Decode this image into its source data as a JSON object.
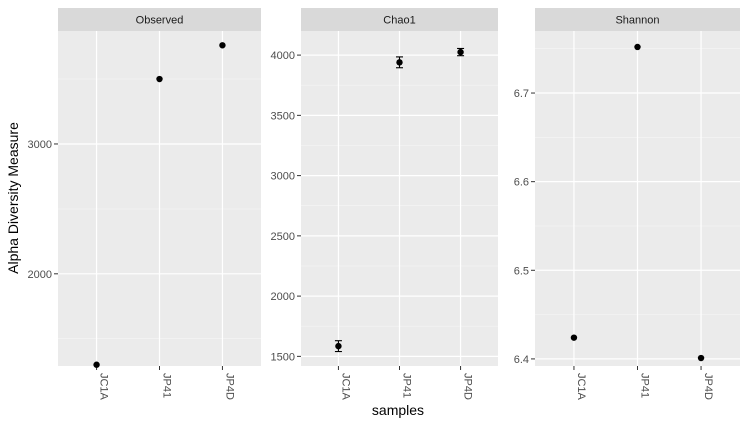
{
  "chart_data": {
    "type": "scatter",
    "ylabel": "Alpha Diversity Measure",
    "xlabel": "samples",
    "categories": [
      "JC1A",
      "JP41",
      "JP4D"
    ],
    "panels": [
      {
        "title": "Observed",
        "ylim": [
          1290,
          3870
        ],
        "yticks": [
          2000,
          3000
        ],
        "values": [
          1300,
          3500,
          3760
        ],
        "errors": null
      },
      {
        "title": "Chao1",
        "ylim": [
          1420,
          4200
        ],
        "yticks": [
          1500,
          2000,
          2500,
          3000,
          3500,
          4000
        ],
        "values": [
          1585,
          3940,
          4025
        ],
        "errors": [
          45,
          45,
          30
        ]
      },
      {
        "title": "Shannon",
        "ylim": [
          6.392,
          6.77
        ],
        "yticks": [
          6.4,
          6.5,
          6.6,
          6.7
        ],
        "values": [
          6.424,
          6.752,
          6.401
        ],
        "errors": null
      }
    ]
  }
}
